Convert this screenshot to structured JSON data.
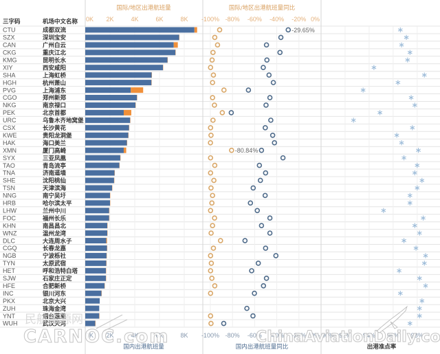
{
  "table": {
    "headers": {
      "code": "三字码",
      "name": "机场中文名称"
    },
    "rows": [
      {
        "code": "CTU",
        "name": "成都双流"
      },
      {
        "code": "SZX",
        "name": "深圳宝安"
      },
      {
        "code": "CAN",
        "name": "广州白云"
      },
      {
        "code": "CKG",
        "name": "重庆江北"
      },
      {
        "code": "KMG",
        "name": "昆明长水"
      },
      {
        "code": "XIY",
        "name": "西安咸阳"
      },
      {
        "code": "SHA",
        "name": "上海虹桥"
      },
      {
        "code": "HGH",
        "name": "杭州萧山"
      },
      {
        "code": "PVG",
        "name": "上海浦东"
      },
      {
        "code": "CGO",
        "name": "郑州新郑"
      },
      {
        "code": "NKG",
        "name": "南京禄口"
      },
      {
        "code": "PEK",
        "name": "北京首都"
      },
      {
        "code": "URC",
        "name": "乌鲁木齐地窝堡"
      },
      {
        "code": "CSX",
        "name": "长沙黄花"
      },
      {
        "code": "KWE",
        "name": "贵阳龙洞堡"
      },
      {
        "code": "HAK",
        "name": "海口美兰"
      },
      {
        "code": "XMN",
        "name": "厦门高崎"
      },
      {
        "code": "SYX",
        "name": "三亚凤凰"
      },
      {
        "code": "TAO",
        "name": "青岛流亭"
      },
      {
        "code": "TNA",
        "name": "济南遥墙"
      },
      {
        "code": "SHE",
        "name": "沈阳桃仙"
      },
      {
        "code": "TSN",
        "name": "天津滨海"
      },
      {
        "code": "NNG",
        "name": "南宁吴圩"
      },
      {
        "code": "HRB",
        "name": "哈尔滨太平"
      },
      {
        "code": "LHW",
        "name": "兰州中川"
      },
      {
        "code": "FOC",
        "name": "福州长乐"
      },
      {
        "code": "KHN",
        "name": "南昌昌北"
      },
      {
        "code": "WNZ",
        "name": "温州龙湾"
      },
      {
        "code": "DLC",
        "name": "大连周水子"
      },
      {
        "code": "CGQ",
        "name": "长春龙嘉"
      },
      {
        "code": "NGB",
        "name": "宁波栎社"
      },
      {
        "code": "TYN",
        "name": "太原武宿"
      },
      {
        "code": "HET",
        "name": "呼和浩特白塔"
      },
      {
        "code": "SJW",
        "name": "石家庄正定"
      },
      {
        "code": "HFE",
        "name": "合肥新桥"
      },
      {
        "code": "INC",
        "name": "银川河东"
      },
      {
        "code": "PKX",
        "name": "北京大兴"
      },
      {
        "code": "ZUH",
        "name": "珠海金湾"
      },
      {
        "code": "YNT",
        "name": "烟台蓬莱"
      },
      {
        "code": "WUH",
        "name": "武汉天河"
      }
    ]
  },
  "colors": {
    "domestic_bar": "#4a6fa0",
    "international_bar": "#f0903a",
    "intl_yoy_circle": "#d9a768",
    "dom_yoy_circle": "#4f6b8a",
    "ontime_star": "#9cbbd8",
    "gridline": "#e4e4e4",
    "divider": "#d6d6d6"
  },
  "watermarks": {
    "cn": "民航资源网",
    "carnoc": "CARNOC.com",
    "cad": "ChinaAviationDaily.com"
  },
  "chart_data": [
    {
      "type": "bar",
      "stacked": true,
      "orientation": "horizontal",
      "title_top": "国际/地区出港航班量",
      "title_bottom": "国内出港航班量",
      "categories": [
        "CTU",
        "SZX",
        "CAN",
        "CKG",
        "KMG",
        "XIY",
        "SHA",
        "HGH",
        "PVG",
        "CGO",
        "NKG",
        "PEK",
        "URC",
        "CSX",
        "KWE",
        "HAK",
        "XMN",
        "SYX",
        "TAO",
        "TNA",
        "SHE",
        "TSN",
        "NNG",
        "HRB",
        "LHW",
        "FOC",
        "KHN",
        "WNZ",
        "DLC",
        "CGQ",
        "NGB",
        "TYN",
        "HET",
        "SJW",
        "HFE",
        "INC",
        "PKX",
        "ZUH",
        "YNT",
        "WUH"
      ],
      "series": [
        {
          "name": "国内出港航班量",
          "unit": "K flights",
          "values": [
            8.82,
            7.59,
            7.15,
            7.29,
            6.65,
            6.28,
            5.37,
            5.35,
            3.68,
            4.18,
            4.06,
            3.11,
            3.63,
            3.54,
            3.48,
            3.37,
            3.11,
            2.83,
            2.76,
            2.37,
            2.33,
            2.17,
            2.0,
            2.0,
            1.93,
            1.93,
            1.78,
            1.78,
            1.7,
            1.76,
            1.72,
            1.7,
            1.67,
            1.67,
            1.56,
            1.31,
            1.17,
            1.13,
            1.13,
            0.81
          ]
        },
        {
          "name": "国际/地区出港航班量",
          "unit": "K flights",
          "values": [
            0.22,
            0.02,
            0.33,
            0.02,
            0.02,
            0.02,
            0.02,
            0.02,
            1.0,
            0.02,
            0.02,
            0.61,
            0.02,
            0.02,
            0.02,
            0.02,
            0.2,
            0.02,
            0.02,
            0.02,
            0.02,
            0.02,
            0.02,
            0.02,
            0.02,
            0.02,
            0.02,
            0.02,
            0.06,
            0.02,
            0.02,
            0.02,
            0.02,
            0.02,
            0.02,
            0.02,
            0,
            0,
            0.02,
            0.02
          ]
        }
      ],
      "xticks": [
        "0K",
        "2K",
        "4K",
        "6K",
        "8K"
      ],
      "xtick_values": [
        0,
        2,
        4,
        6,
        8
      ],
      "xlim": [
        0,
        9.5
      ],
      "grid": true
    },
    {
      "type": "scatter",
      "title_top": "国际/地区出港航班量同比",
      "title_bottom": "国内出港航班量同比",
      "categories": [
        "CTU",
        "SZX",
        "CAN",
        "CKG",
        "KMG",
        "XIY",
        "SHA",
        "HGH",
        "PVG",
        "CGO",
        "NKG",
        "PEK",
        "URC",
        "CSX",
        "KWE",
        "HAK",
        "XMN",
        "SYX",
        "TAO",
        "TNA",
        "SHE",
        "TSN",
        "NNG",
        "HRB",
        "LHW",
        "FOC",
        "KHN",
        "WNZ",
        "DLC",
        "CGQ",
        "NGB",
        "TYN",
        "HET",
        "SJW",
        "HFE",
        "INC",
        "PKX",
        "ZUH",
        "YNT",
        "WUH"
      ],
      "series": [
        {
          "name": "国际/地区出港航班量同比",
          "unit": "%",
          "marker": "circle",
          "values": [
            -91.6,
            -96.0,
            -93.5,
            -97.6,
            -98.4,
            -99.8,
            -97.2,
            -98.0,
            -87.7,
            -98.0,
            -96.3,
            -89.2,
            -97.6,
            -99.8,
            -99.4,
            -99.9,
            -80.84,
            -99.8,
            -96.0,
            -99.8,
            -96.8,
            -99.4,
            -98.0,
            -98.6,
            -99.8,
            -96.2,
            -98.0,
            -99.3,
            -90.8,
            -97.2,
            -99.8,
            -99.1,
            -99.8,
            -98.6,
            -96.0,
            -99.8,
            null,
            null,
            -99.8,
            -99.4
          ]
        },
        {
          "name": "国内出港航班量同比",
          "unit": "%",
          "marker": "circle",
          "values": [
            -29.65,
            -36.3,
            -49.3,
            -37.1,
            -48.9,
            -52.2,
            -47.0,
            -43.1,
            -65.6,
            -46.2,
            -49.7,
            -81.1,
            -45.4,
            -50.4,
            -43.7,
            -42.1,
            -53.8,
            -34.4,
            -55.7,
            -50.1,
            -54.8,
            -61.3,
            -50.5,
            -63.8,
            -57.6,
            -46.2,
            -53.8,
            -46.2,
            -68.7,
            -50.1,
            -40.8,
            -56.7,
            -62.7,
            -49.3,
            -52.0,
            -60.2,
            null,
            -67.0,
            -61.5,
            -87.9
          ]
        }
      ],
      "annotations": [
        {
          "category": "CTU",
          "series": 1,
          "text": "-29.65%"
        },
        {
          "category": "XMN",
          "series": 0,
          "text": "-80.84%"
        }
      ],
      "xticks": [
        "-100%",
        "-80%",
        "-60%",
        "-40%",
        "-20%",
        "0%"
      ],
      "xtick_values": [
        -100,
        -80,
        -60,
        -40,
        -20,
        0
      ],
      "xlim": [
        -106.8,
        0
      ],
      "grid": true
    },
    {
      "type": "scatter",
      "title_bottom": "出港准点率",
      "categories": [
        "CTU",
        "SZX",
        "CAN",
        "CKG",
        "KMG",
        "XIY",
        "SHA",
        "HGH",
        "PVG",
        "CGO",
        "NKG",
        "PEK",
        "URC",
        "CSX",
        "KWE",
        "HAK",
        "XMN",
        "SYX",
        "TAO",
        "TNA",
        "SHE",
        "TSN",
        "NNG",
        "HRB",
        "LHW",
        "FOC",
        "KHN",
        "WNZ",
        "DLC",
        "CGQ",
        "NGB",
        "TYN",
        "HET",
        "SJW",
        "HFE",
        "INC",
        "PKX",
        "ZUH",
        "YNT",
        "WUH"
      ],
      "series": [
        {
          "name": "出港准点率",
          "unit": "%",
          "marker": "asterisk",
          "values": [
            96.6,
            97.1,
            96.7,
            97.4,
            97.2,
            94.4,
            98.6,
            96.4,
            93.5,
            97.5,
            97.8,
            94.9,
            92.7,
            97.6,
            96.3,
            96.7,
            98.1,
            96.9,
            98.0,
            97.8,
            98.4,
            98.0,
            97.4,
            97.4,
            95.2,
            98.5,
            97.8,
            98.2,
            96.9,
            97.9,
            98.7,
            98.6,
            96.5,
            98.2,
            98.7,
            96.6,
            98.4,
            98.2,
            98.2,
            97.4
          ]
        }
      ],
      "xticks": [
        "90%",
        "92%",
        "94%",
        "96%",
        "98%"
      ],
      "xtick_values": [
        90,
        92,
        94,
        96,
        98
      ],
      "xlim": [
        90,
        99.9
      ],
      "grid": true
    }
  ]
}
